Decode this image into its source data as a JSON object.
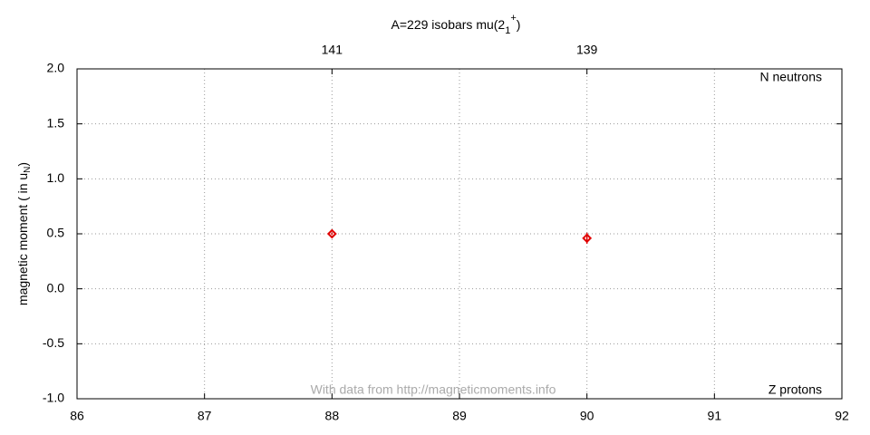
{
  "chart_data": {
    "type": "scatter",
    "title": "A=229 isobars mu(2",
    "title_sub": "1",
    "title_sup": "+",
    "title_end": ")",
    "y_label": "magnetic moment ( in u",
    "y_label_sub": "N",
    "y_label_end": ")",
    "annotations": [
      "N neutrons",
      "Z protons",
      "With data from http://magneticmoments.info"
    ],
    "xlim": [
      86,
      92
    ],
    "ylim": [
      -1,
      2
    ],
    "xticks": [
      86,
      87,
      88,
      89,
      90,
      91,
      92
    ],
    "x2ticks": [
      {
        "value": 88,
        "label": "141"
      },
      {
        "value": 90,
        "label": "139"
      }
    ],
    "yticks": [
      {
        "value": -1,
        "label": "-1.0"
      },
      -0.5,
      {
        "value": 0,
        "label": "0.0"
      },
      0.5,
      {
        "value": 1,
        "label": "1.0"
      },
      1.5,
      {
        "value": 2,
        "label": "2.0"
      }
    ],
    "grid": true,
    "series": [
      {
        "color": "#e00000",
        "x": [
          88,
          90
        ],
        "values": [
          0.5,
          0.46
        ],
        "errors": [
          0.01,
          0.05
        ]
      }
    ]
  }
}
